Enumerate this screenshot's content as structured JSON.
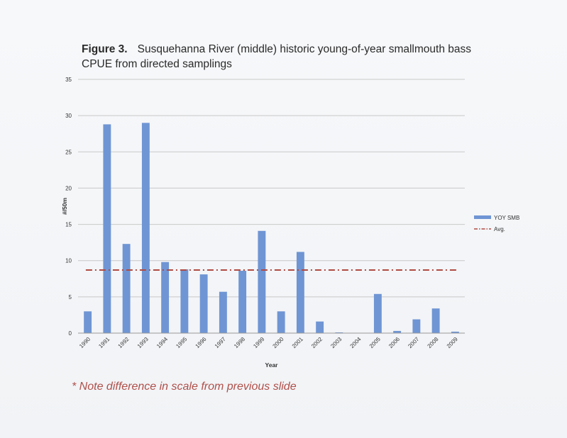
{
  "caption": {
    "figure_label": "Figure 3.",
    "text": "Susquehanna River (middle) historic young-of-year smallmouth bass CPUE from directed samplings"
  },
  "note": "* Note difference in scale from previous slide",
  "colors": {
    "bar": "#6f95d4",
    "avg_line": "#b04a42",
    "grid": "#c8c8c8",
    "note": "#b0504a"
  },
  "chart_data": {
    "type": "bar",
    "title": "",
    "xlabel": "Year",
    "ylabel": "#/50m",
    "ylim": [
      0,
      35
    ],
    "yticks": [
      0,
      5,
      10,
      15,
      20,
      25,
      30,
      35
    ],
    "grid": true,
    "legend_position": "right",
    "categories": [
      "1990",
      "1991",
      "1992",
      "1993",
      "1994",
      "1995",
      "1996",
      "1997",
      "1998",
      "1999",
      "2000",
      "2001",
      "2002",
      "2003",
      "2004",
      "2005",
      "2006",
      "2007",
      "2008",
      "2009"
    ],
    "series": [
      {
        "name": "YOY SMB",
        "type": "bar",
        "values": [
          3.0,
          28.8,
          12.3,
          29.0,
          9.8,
          8.8,
          8.1,
          5.7,
          8.6,
          14.1,
          3.0,
          11.2,
          1.6,
          0.1,
          0.0,
          5.4,
          0.3,
          1.9,
          3.4,
          0.2
        ]
      },
      {
        "name": "Avg.",
        "type": "line",
        "style": "dash-dot",
        "value": 8.7
      }
    ]
  }
}
